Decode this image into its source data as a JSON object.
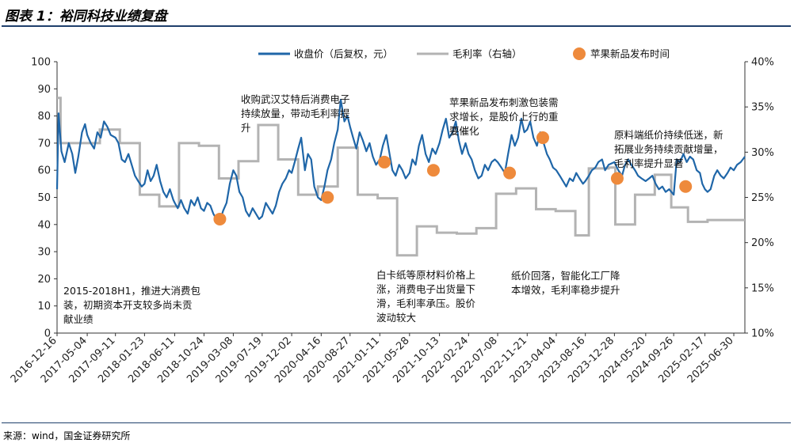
{
  "header": {
    "title": "图表 1：裕同科技业绩复盘"
  },
  "footer": {
    "source": "来源：wind，国金证券研究所"
  },
  "colors": {
    "price": "#1f66a8",
    "margin": "#b3b3b3",
    "event": "#ee8a3c",
    "axis": "#333333"
  },
  "chart_data": {
    "type": "line",
    "title": "图表 1：裕同科技业绩复盘",
    "x_ticks": [
      "2016-12-16",
      "2017-05-04",
      "2017-09-11",
      "2018-01-23",
      "2018-06-11",
      "2018-10-24",
      "2019-03-08",
      "2019-07-19",
      "2019-12-02",
      "2020-04-16",
      "2020-08-27",
      "2021-01-11",
      "2021-05-28",
      "2021-10-13",
      "2022-02-24",
      "2022-07-08",
      "2022-11-21",
      "2023-04-04",
      "2023-08-16",
      "2023-12-28",
      "2024-05-20",
      "2024-09-26",
      "2025-02-17",
      "2025-06-30"
    ],
    "x_range": [
      "2016-12-16",
      "2025-08-20"
    ],
    "left_axis": {
      "ylim": [
        0,
        100
      ],
      "ticks": [
        0,
        10,
        20,
        30,
        40,
        50,
        60,
        70,
        80,
        90,
        100
      ]
    },
    "right_axis": {
      "ylim": [
        0.1,
        0.4
      ],
      "ticks": [
        "10%",
        "15%",
        "20%",
        "25%",
        "30%",
        "35%",
        "40%"
      ]
    },
    "legend": {
      "placement": "top",
      "items": [
        "收盘价（后复权，元）",
        "毛利率（右轴）",
        "苹果新品发布时间"
      ]
    },
    "series": [
      {
        "name": "收盘价（后复权，元）",
        "axis": "left",
        "points": [
          [
            "2016-12-16",
            53
          ],
          [
            "2016-12-23",
            81
          ],
          [
            "2017-01-05",
            67
          ],
          [
            "2017-01-20",
            63
          ],
          [
            "2017-02-08",
            70
          ],
          [
            "2017-02-24",
            66
          ],
          [
            "2017-03-10",
            59
          ],
          [
            "2017-03-24",
            65
          ],
          [
            "2017-04-10",
            74
          ],
          [
            "2017-04-24",
            77
          ],
          [
            "2017-05-04",
            73
          ],
          [
            "2017-05-20",
            70
          ],
          [
            "2017-06-05",
            68
          ],
          [
            "2017-06-20",
            74
          ],
          [
            "2017-07-05",
            72
          ],
          [
            "2017-07-20",
            78
          ],
          [
            "2017-08-05",
            76
          ],
          [
            "2017-08-20",
            73
          ],
          [
            "2017-09-11",
            72
          ],
          [
            "2017-09-25",
            70
          ],
          [
            "2017-10-10",
            64
          ],
          [
            "2017-10-25",
            63
          ],
          [
            "2017-11-10",
            66
          ],
          [
            "2017-11-25",
            62
          ],
          [
            "2017-12-10",
            58
          ],
          [
            "2017-12-25",
            56
          ],
          [
            "2018-01-10",
            54
          ],
          [
            "2018-01-23",
            55
          ],
          [
            "2018-02-06",
            60
          ],
          [
            "2018-02-20",
            56
          ],
          [
            "2018-03-06",
            58
          ],
          [
            "2018-03-20",
            62
          ],
          [
            "2018-04-05",
            56
          ],
          [
            "2018-04-20",
            52
          ],
          [
            "2018-05-05",
            50
          ],
          [
            "2018-05-20",
            53
          ],
          [
            "2018-06-05",
            49
          ],
          [
            "2018-06-11",
            48
          ],
          [
            "2018-06-25",
            46
          ],
          [
            "2018-07-10",
            49
          ],
          [
            "2018-07-25",
            46
          ],
          [
            "2018-08-10",
            44
          ],
          [
            "2018-08-25",
            49
          ],
          [
            "2018-09-10",
            47
          ],
          [
            "2018-09-25",
            50
          ],
          [
            "2018-10-10",
            46
          ],
          [
            "2018-10-24",
            45
          ],
          [
            "2018-11-08",
            48
          ],
          [
            "2018-11-22",
            47
          ],
          [
            "2018-12-06",
            44
          ],
          [
            "2018-12-20",
            42
          ],
          [
            "2019-01-05",
            41
          ],
          [
            "2019-01-20",
            45
          ],
          [
            "2019-02-05",
            48
          ],
          [
            "2019-02-20",
            55
          ],
          [
            "2019-03-08",
            60
          ],
          [
            "2019-03-22",
            58
          ],
          [
            "2019-04-05",
            52
          ],
          [
            "2019-04-20",
            50
          ],
          [
            "2019-05-05",
            45
          ],
          [
            "2019-05-20",
            43
          ],
          [
            "2019-06-05",
            46
          ],
          [
            "2019-06-20",
            44
          ],
          [
            "2019-07-05",
            42
          ],
          [
            "2019-07-19",
            43
          ],
          [
            "2019-08-05",
            48
          ],
          [
            "2019-08-20",
            46
          ],
          [
            "2019-09-05",
            44
          ],
          [
            "2019-09-20",
            47
          ],
          [
            "2019-10-05",
            52
          ],
          [
            "2019-10-20",
            55
          ],
          [
            "2019-11-05",
            57
          ],
          [
            "2019-11-20",
            60
          ],
          [
            "2019-12-02",
            59
          ],
          [
            "2019-12-16",
            63
          ],
          [
            "2020-01-01",
            68
          ],
          [
            "2020-01-15",
            72
          ],
          [
            "2020-02-01",
            60
          ],
          [
            "2020-02-15",
            66
          ],
          [
            "2020-03-01",
            64
          ],
          [
            "2020-03-15",
            54
          ],
          [
            "2020-04-01",
            50
          ],
          [
            "2020-04-16",
            49
          ],
          [
            "2020-05-01",
            54
          ],
          [
            "2020-05-15",
            60
          ],
          [
            "2020-06-01",
            64
          ],
          [
            "2020-06-15",
            70
          ],
          [
            "2020-07-01",
            75
          ],
          [
            "2020-07-15",
            86
          ],
          [
            "2020-08-01",
            78
          ],
          [
            "2020-08-15",
            80
          ],
          [
            "2020-08-27",
            76
          ],
          [
            "2020-09-10",
            72
          ],
          [
            "2020-09-25",
            68
          ],
          [
            "2020-10-10",
            74
          ],
          [
            "2020-10-25",
            71
          ],
          [
            "2020-11-10",
            67
          ],
          [
            "2020-11-25",
            70
          ],
          [
            "2020-12-10",
            65
          ],
          [
            "2020-12-25",
            62
          ],
          [
            "2021-01-11",
            64
          ],
          [
            "2021-01-25",
            69
          ],
          [
            "2021-02-10",
            73
          ],
          [
            "2021-02-25",
            66
          ],
          [
            "2021-03-10",
            60
          ],
          [
            "2021-03-25",
            58
          ],
          [
            "2021-04-10",
            62
          ],
          [
            "2021-04-25",
            60
          ],
          [
            "2021-05-10",
            57
          ],
          [
            "2021-05-28",
            59
          ],
          [
            "2021-06-10",
            64
          ],
          [
            "2021-06-25",
            62
          ],
          [
            "2021-07-10",
            69
          ],
          [
            "2021-07-25",
            73
          ],
          [
            "2021-08-10",
            66
          ],
          [
            "2021-08-25",
            63
          ],
          [
            "2021-09-10",
            68
          ],
          [
            "2021-09-25",
            66
          ],
          [
            "2021-10-13",
            70
          ],
          [
            "2021-10-28",
            75
          ],
          [
            "2021-11-12",
            79
          ],
          [
            "2021-11-27",
            72
          ],
          [
            "2021-12-12",
            74
          ],
          [
            "2021-12-27",
            78
          ],
          [
            "2022-01-10",
            71
          ],
          [
            "2022-01-25",
            66
          ],
          [
            "2022-02-10",
            70
          ],
          [
            "2022-02-24",
            66
          ],
          [
            "2022-03-10",
            64
          ],
          [
            "2022-03-25",
            60
          ],
          [
            "2022-04-10",
            57
          ],
          [
            "2022-04-25",
            58
          ],
          [
            "2022-05-10",
            62
          ],
          [
            "2022-05-25",
            60
          ],
          [
            "2022-06-10",
            63
          ],
          [
            "2022-06-25",
            64
          ],
          [
            "2022-07-08",
            63
          ],
          [
            "2022-07-25",
            61
          ],
          [
            "2022-08-10",
            59
          ],
          [
            "2022-08-25",
            66
          ],
          [
            "2022-09-10",
            73
          ],
          [
            "2022-09-25",
            69
          ],
          [
            "2022-10-10",
            72
          ],
          [
            "2022-10-25",
            79
          ],
          [
            "2022-11-08",
            74
          ],
          [
            "2022-11-21",
            75
          ],
          [
            "2022-12-05",
            78
          ],
          [
            "2022-12-20",
            72
          ],
          [
            "2023-01-05",
            69
          ],
          [
            "2023-01-20",
            74
          ],
          [
            "2023-02-05",
            70
          ],
          [
            "2023-02-20",
            66
          ],
          [
            "2023-03-05",
            64
          ],
          [
            "2023-03-20",
            61
          ],
          [
            "2023-04-04",
            60
          ],
          [
            "2023-04-20",
            58
          ],
          [
            "2023-05-05",
            56
          ],
          [
            "2023-05-20",
            54
          ],
          [
            "2023-06-05",
            57
          ],
          [
            "2023-06-20",
            56
          ],
          [
            "2023-07-05",
            59
          ],
          [
            "2023-07-20",
            57
          ],
          [
            "2023-08-05",
            55
          ],
          [
            "2023-08-16",
            56
          ],
          [
            "2023-09-01",
            58
          ],
          [
            "2023-09-15",
            60
          ],
          [
            "2023-10-01",
            61
          ],
          [
            "2023-10-15",
            63
          ],
          [
            "2023-11-01",
            64
          ],
          [
            "2023-11-15",
            60
          ],
          [
            "2023-12-01",
            62
          ],
          [
            "2023-12-28",
            63
          ],
          [
            "2024-01-15",
            60
          ],
          [
            "2024-02-01",
            58
          ],
          [
            "2024-02-15",
            62
          ],
          [
            "2024-03-01",
            64
          ],
          [
            "2024-03-15",
            62
          ],
          [
            "2024-04-01",
            60
          ],
          [
            "2024-04-15",
            58
          ],
          [
            "2024-05-01",
            57
          ],
          [
            "2024-05-20",
            56
          ],
          [
            "2024-06-05",
            57
          ],
          [
            "2024-06-20",
            58
          ],
          [
            "2024-07-05",
            55
          ],
          [
            "2024-07-20",
            53
          ],
          [
            "2024-08-05",
            54
          ],
          [
            "2024-08-20",
            52
          ],
          [
            "2024-09-05",
            53
          ],
          [
            "2024-09-26",
            51
          ],
          [
            "2024-10-10",
            64
          ],
          [
            "2024-10-25",
            63
          ],
          [
            "2024-11-10",
            66
          ],
          [
            "2024-11-25",
            63
          ],
          [
            "2024-12-10",
            65
          ],
          [
            "2024-12-25",
            64
          ],
          [
            "2025-01-10",
            60
          ],
          [
            "2025-01-25",
            59
          ],
          [
            "2025-02-05",
            55
          ],
          [
            "2025-02-17",
            53
          ],
          [
            "2025-03-01",
            52
          ],
          [
            "2025-03-15",
            53
          ],
          [
            "2025-04-01",
            58
          ],
          [
            "2025-04-15",
            60
          ],
          [
            "2025-05-01",
            58
          ],
          [
            "2025-05-15",
            57
          ],
          [
            "2025-06-01",
            59
          ],
          [
            "2025-06-15",
            61
          ],
          [
            "2025-06-30",
            60
          ],
          [
            "2025-07-15",
            62
          ],
          [
            "2025-08-01",
            63
          ],
          [
            "2025-08-20",
            65
          ]
        ]
      },
      {
        "name": "毛利率（右轴）",
        "axis": "right",
        "type": "step",
        "points": [
          [
            "2016-12-16",
            0.36
          ],
          [
            "2017-01-01",
            0.31
          ],
          [
            "2017-07-01",
            0.325
          ],
          [
            "2017-10-01",
            0.31
          ],
          [
            "2018-01-01",
            0.253
          ],
          [
            "2018-04-01",
            0.24
          ],
          [
            "2018-07-01",
            0.31
          ],
          [
            "2018-10-01",
            0.307
          ],
          [
            "2019-01-01",
            0.271
          ],
          [
            "2019-04-01",
            0.29
          ],
          [
            "2019-07-01",
            0.33
          ],
          [
            "2019-10-01",
            0.292
          ],
          [
            "2020-01-01",
            0.253
          ],
          [
            "2020-04-01",
            0.262
          ],
          [
            "2020-07-01",
            0.305
          ],
          [
            "2020-10-01",
            0.253
          ],
          [
            "2021-01-01",
            0.249
          ],
          [
            "2021-04-01",
            0.186
          ],
          [
            "2021-07-01",
            0.218
          ],
          [
            "2021-10-01",
            0.211
          ],
          [
            "2022-01-01",
            0.21
          ],
          [
            "2022-04-01",
            0.216
          ],
          [
            "2022-07-01",
            0.254
          ],
          [
            "2022-10-01",
            0.26
          ],
          [
            "2023-01-01",
            0.237
          ],
          [
            "2023-04-01",
            0.235
          ],
          [
            "2023-07-01",
            0.208
          ],
          [
            "2023-09-01",
            0.282
          ],
          [
            "2023-12-01",
            0.283
          ],
          [
            "2024-01-01",
            0.22
          ],
          [
            "2024-04-01",
            0.253
          ],
          [
            "2024-07-01",
            0.275
          ],
          [
            "2024-09-15",
            0.239
          ],
          [
            "2024-12-01",
            0.223
          ],
          [
            "2025-03-01",
            0.225
          ],
          [
            "2025-06-01",
            0.225
          ],
          [
            "2025-08-20",
            0.225
          ]
        ]
      }
    ],
    "events": {
      "name": "苹果新品发布时间",
      "points": [
        [
          "2019-01-05",
          42
        ],
        [
          "2020-05-15",
          50
        ],
        [
          "2021-02-01",
          63
        ],
        [
          "2021-09-15",
          60
        ],
        [
          "2022-09-01",
          59
        ],
        [
          "2023-02-01",
          72
        ],
        [
          "2024-01-10",
          57
        ],
        [
          "2024-11-20",
          54
        ]
      ]
    },
    "annotations": [
      {
        "lines": [
          "2015-2018H1，推进大消费包",
          "装，初期资本开支较多尚未贡",
          "献业绩"
        ]
      },
      {
        "lines": [
          "收购武汉艾特后消费电子",
          "持续放量，带动毛利率提",
          "升"
        ]
      },
      {
        "lines": [
          "白卡纸等原材料价格上",
          "涨，消费电子出货量下",
          "滑，毛利率承压。股价",
          "波动较大"
        ]
      },
      {
        "lines": [
          "苹果新品发布刺激包装需",
          "求增长，是股价上行的重",
          "要催化"
        ]
      },
      {
        "lines": [
          "纸价回落，智能化工厂降",
          "本增效，毛利率稳步提升"
        ]
      },
      {
        "lines": [
          "原料端纸价持续低迷，新",
          "拓展业务持续贡献增量，",
          "毛利率提升显著"
        ]
      }
    ]
  }
}
